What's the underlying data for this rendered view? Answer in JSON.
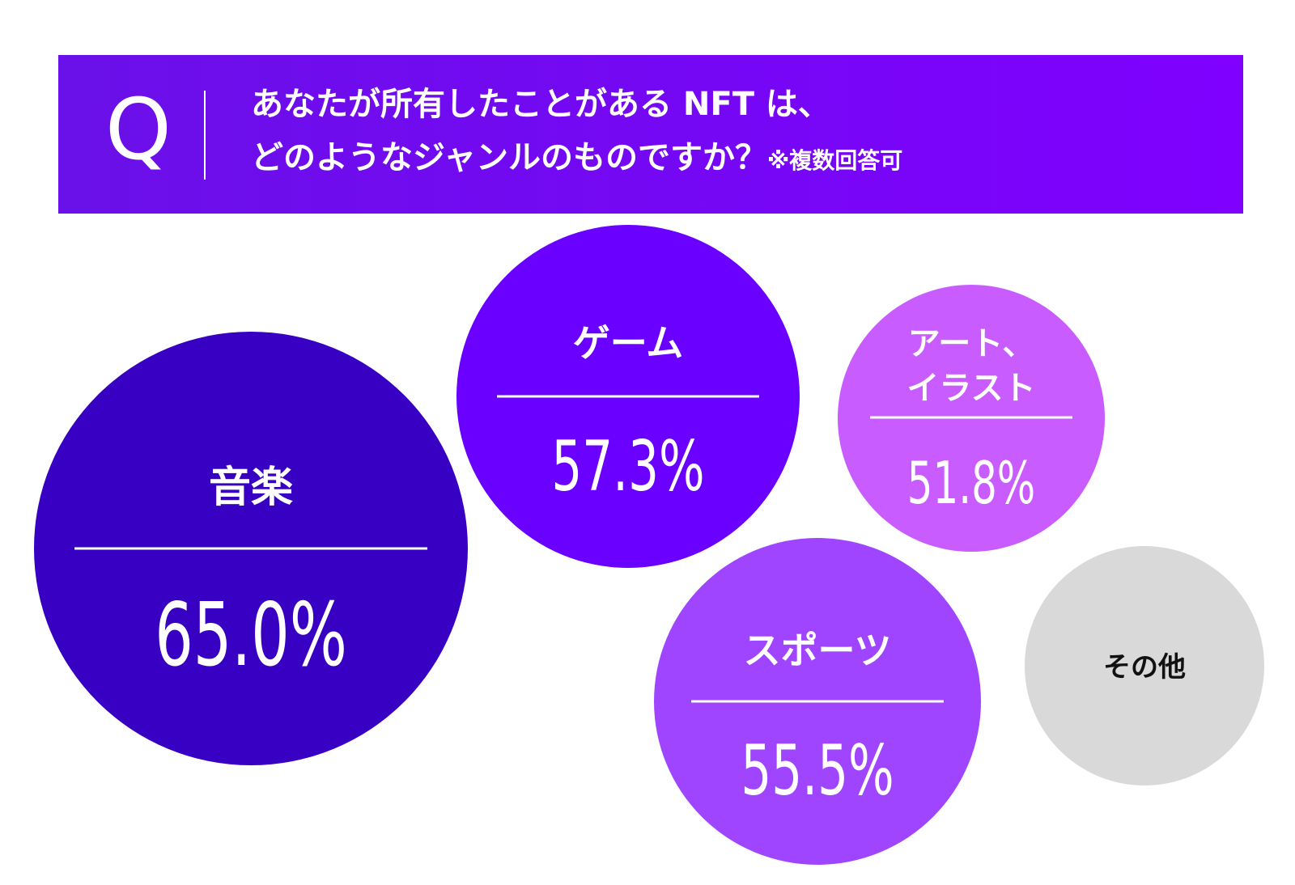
{
  "header": {
    "q_letter": "Q",
    "question_line1": "あなたが所有したことがある NFT は、",
    "question_line2": "どのようなジャンルのものですか？",
    "note": "※複数回答可",
    "accent_color": "#7400ff"
  },
  "chart_data": {
    "type": "bubble",
    "title": "あなたが所有したことがある NFT は、どのようなジャンルのものですか？※複数回答可",
    "unit": "%",
    "categories": [
      {
        "label_lines": [
          "音楽"
        ],
        "value": 65.0,
        "display": "65.0%",
        "color": "#3700c2"
      },
      {
        "label_lines": [
          "ゲーム"
        ],
        "value": 57.3,
        "display": "57.3%",
        "color": "#6a00ff"
      },
      {
        "label_lines": [
          "アート、",
          "イラスト"
        ],
        "value": 51.8,
        "display": "51.8%",
        "color": "#c85cff"
      },
      {
        "label_lines": [
          "スポーツ"
        ],
        "value": 55.5,
        "display": "55.5%",
        "color": "#9f45ff"
      },
      {
        "label_lines": [
          "その他"
        ],
        "value": null,
        "display": "",
        "color": "#d9d9d9"
      }
    ]
  }
}
